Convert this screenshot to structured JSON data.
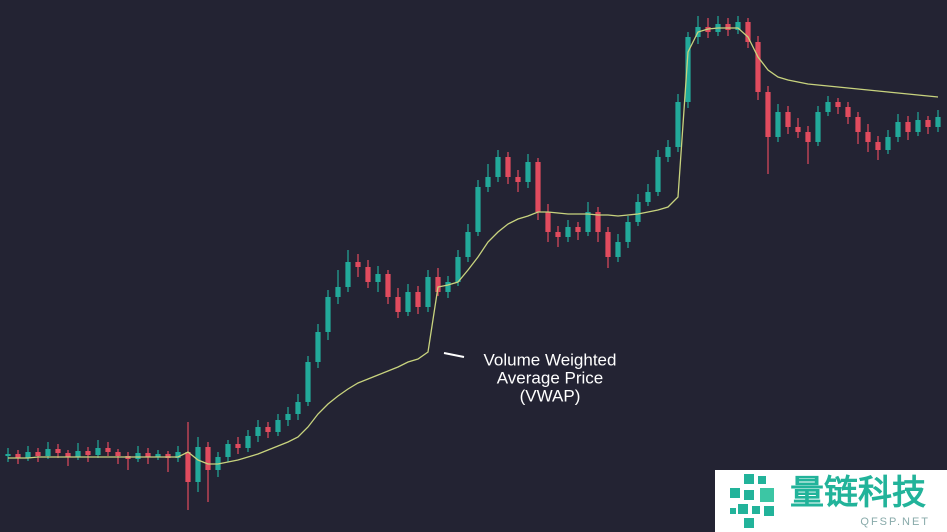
{
  "chart_data": {
    "type": "candlestick",
    "up_color": "#22a99a",
    "down_color": "#e14b5e",
    "vwap_color": "#c8d37e",
    "ylim": [
      0,
      532
    ],
    "annotation": [
      "Volume Weighted",
      "Average Price",
      "(VWAP)"
    ],
    "ohlc": [
      [
        76,
        84,
        70,
        78
      ],
      [
        78,
        82,
        68,
        74
      ],
      [
        74,
        86,
        71,
        80
      ],
      [
        80,
        84,
        70,
        76
      ],
      [
        76,
        90,
        73,
        83
      ],
      [
        83,
        88,
        74,
        79
      ],
      [
        79,
        82,
        66,
        75
      ],
      [
        75,
        89,
        72,
        81
      ],
      [
        81,
        85,
        70,
        77
      ],
      [
        77,
        92,
        74,
        84
      ],
      [
        84,
        90,
        76,
        80
      ],
      [
        80,
        83,
        68,
        76
      ],
      [
        76,
        80,
        62,
        73
      ],
      [
        73,
        86,
        70,
        79
      ],
      [
        79,
        84,
        68,
        75
      ],
      [
        75,
        82,
        72,
        78
      ],
      [
        78,
        81,
        60,
        74
      ],
      [
        74,
        86,
        70,
        80
      ],
      [
        80,
        110,
        22,
        50
      ],
      [
        50,
        95,
        40,
        85
      ],
      [
        85,
        90,
        30,
        62
      ],
      [
        62,
        80,
        55,
        75
      ],
      [
        75,
        92,
        70,
        88
      ],
      [
        88,
        95,
        78,
        84
      ],
      [
        84,
        102,
        80,
        96
      ],
      [
        96,
        112,
        90,
        105
      ],
      [
        105,
        110,
        94,
        100
      ],
      [
        100,
        118,
        96,
        112
      ],
      [
        112,
        125,
        106,
        118
      ],
      [
        118,
        138,
        112,
        130
      ],
      [
        130,
        176,
        126,
        170
      ],
      [
        170,
        208,
        164,
        200
      ],
      [
        200,
        242,
        192,
        235
      ],
      [
        235,
        262,
        228,
        245
      ],
      [
        245,
        282,
        240,
        270
      ],
      [
        270,
        278,
        255,
        265
      ],
      [
        265,
        272,
        244,
        250
      ],
      [
        250,
        266,
        240,
        258
      ],
      [
        258,
        262,
        228,
        235
      ],
      [
        235,
        244,
        214,
        220
      ],
      [
        220,
        248,
        216,
        240
      ],
      [
        240,
        246,
        218,
        225
      ],
      [
        225,
        262,
        220,
        255
      ],
      [
        255,
        264,
        236,
        240
      ],
      [
        240,
        256,
        234,
        250
      ],
      [
        250,
        282,
        246,
        275
      ],
      [
        275,
        308,
        270,
        300
      ],
      [
        300,
        352,
        296,
        345
      ],
      [
        345,
        368,
        340,
        355
      ],
      [
        355,
        382,
        350,
        375
      ],
      [
        375,
        380,
        348,
        355
      ],
      [
        355,
        362,
        340,
        350
      ],
      [
        350,
        378,
        344,
        370
      ],
      [
        370,
        374,
        312,
        320
      ],
      [
        320,
        328,
        290,
        300
      ],
      [
        300,
        306,
        285,
        295
      ],
      [
        295,
        312,
        290,
        305
      ],
      [
        305,
        310,
        292,
        300
      ],
      [
        300,
        330,
        296,
        320
      ],
      [
        320,
        325,
        290,
        300
      ],
      [
        300,
        305,
        264,
        275
      ],
      [
        275,
        298,
        270,
        290
      ],
      [
        290,
        316,
        284,
        310
      ],
      [
        310,
        338,
        306,
        330
      ],
      [
        330,
        348,
        326,
        340
      ],
      [
        340,
        382,
        336,
        375
      ],
      [
        375,
        392,
        370,
        385
      ],
      [
        385,
        438,
        380,
        430
      ],
      [
        430,
        500,
        424,
        495
      ],
      [
        495,
        516,
        488,
        505
      ],
      [
        505,
        514,
        494,
        500
      ],
      [
        500,
        516,
        496,
        508
      ],
      [
        508,
        514,
        496,
        502
      ],
      [
        502,
        516,
        498,
        510
      ],
      [
        510,
        514,
        484,
        490
      ],
      [
        490,
        496,
        432,
        440
      ],
      [
        440,
        446,
        358,
        395
      ],
      [
        395,
        428,
        390,
        420
      ],
      [
        420,
        426,
        398,
        405
      ],
      [
        405,
        414,
        394,
        400
      ],
      [
        400,
        406,
        368,
        390
      ],
      [
        390,
        426,
        386,
        420
      ],
      [
        420,
        436,
        416,
        430
      ],
      [
        430,
        434,
        418,
        425
      ],
      [
        425,
        430,
        408,
        415
      ],
      [
        415,
        420,
        388,
        400
      ],
      [
        400,
        408,
        380,
        390
      ],
      [
        390,
        396,
        372,
        382
      ],
      [
        382,
        402,
        378,
        395
      ],
      [
        395,
        418,
        390,
        410
      ],
      [
        410,
        416,
        392,
        400
      ],
      [
        400,
        420,
        396,
        412
      ],
      [
        412,
        416,
        398,
        405
      ],
      [
        405,
        422,
        400,
        415
      ]
    ],
    "vwap": [
      74,
      74,
      74,
      75,
      75,
      75,
      75,
      75,
      75,
      75,
      75,
      75,
      75,
      75,
      75,
      75,
      75,
      75,
      80,
      72,
      68,
      68,
      70,
      72,
      75,
      78,
      82,
      86,
      90,
      95,
      105,
      118,
      128,
      136,
      143,
      149,
      153,
      157,
      161,
      165,
      170,
      173,
      180,
      245,
      247,
      250,
      262,
      275,
      290,
      300,
      308,
      313,
      316,
      320,
      320,
      319,
      318,
      318,
      318,
      317,
      317,
      316,
      317,
      318,
      320,
      322,
      325,
      335,
      480,
      500,
      503,
      504,
      504,
      504,
      495,
      475,
      462,
      455,
      452,
      450,
      448,
      447,
      446,
      445,
      444,
      443,
      442,
      441,
      440,
      439,
      438,
      437,
      436,
      435
    ]
  },
  "watermark": {
    "title": "量链科技",
    "url": "QFSP.NET"
  }
}
